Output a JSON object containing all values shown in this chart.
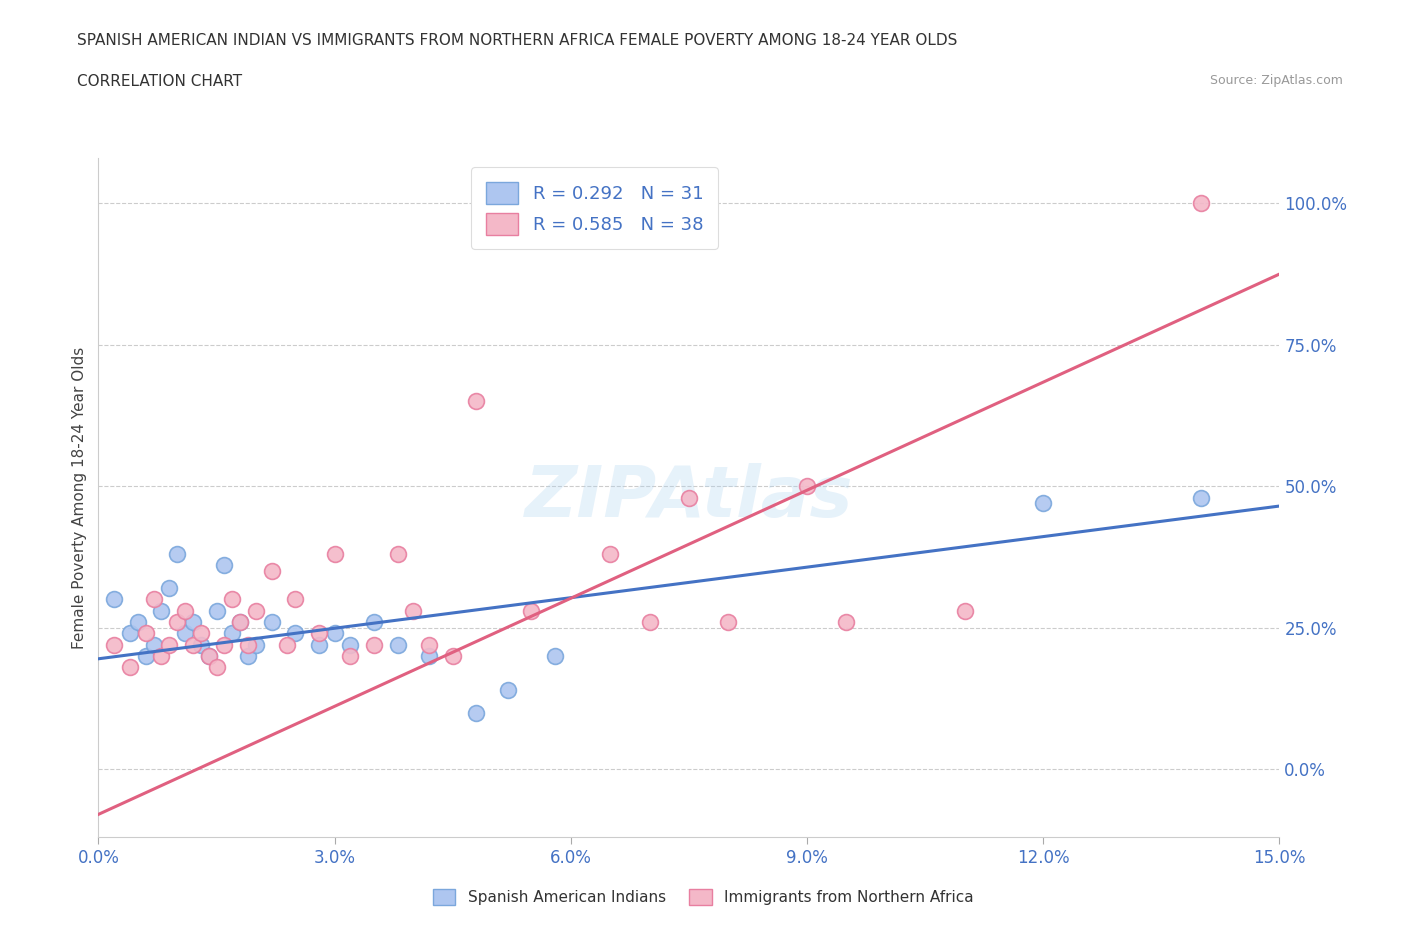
{
  "title_line1": "SPANISH AMERICAN INDIAN VS IMMIGRANTS FROM NORTHERN AFRICA FEMALE POVERTY AMONG 18-24 YEAR OLDS",
  "title_line2": "CORRELATION CHART",
  "source": "Source: ZipAtlas.com",
  "ylabel": "Female Poverty Among 18-24 Year Olds",
  "xlim": [
    0.0,
    0.15
  ],
  "ylim": [
    -0.12,
    1.08
  ],
  "yticks": [
    0.0,
    0.25,
    0.5,
    0.75,
    1.0
  ],
  "ytick_labels": [
    "0.0%",
    "25.0%",
    "50.0%",
    "75.0%",
    "100.0%"
  ],
  "xticks": [
    0.0,
    0.03,
    0.06,
    0.09,
    0.12,
    0.15
  ],
  "xtick_labels": [
    "0.0%",
    "3.0%",
    "6.0%",
    "9.0%",
    "12.0%",
    "15.0%"
  ],
  "watermark": "ZIPAtlas",
  "blue_R": 0.292,
  "blue_N": 31,
  "pink_R": 0.585,
  "pink_N": 38,
  "blue_color": "#aec6f0",
  "blue_edge": "#7ba7dc",
  "pink_color": "#f4b8c8",
  "pink_edge": "#e87fa0",
  "blue_line_color": "#4472c4",
  "pink_line_color": "#e06080",
  "legend_label_blue": "Spanish American Indians",
  "legend_label_pink": "Immigrants from Northern Africa",
  "blue_scatter_x": [
    0.002,
    0.004,
    0.005,
    0.006,
    0.007,
    0.008,
    0.009,
    0.01,
    0.011,
    0.012,
    0.013,
    0.014,
    0.015,
    0.016,
    0.017,
    0.018,
    0.019,
    0.02,
    0.022,
    0.025,
    0.028,
    0.03,
    0.032,
    0.035,
    0.038,
    0.042,
    0.048,
    0.052,
    0.058,
    0.12,
    0.14
  ],
  "blue_scatter_y": [
    0.3,
    0.24,
    0.26,
    0.2,
    0.22,
    0.28,
    0.32,
    0.38,
    0.24,
    0.26,
    0.22,
    0.2,
    0.28,
    0.36,
    0.24,
    0.26,
    0.2,
    0.22,
    0.26,
    0.24,
    0.22,
    0.24,
    0.22,
    0.26,
    0.22,
    0.2,
    0.1,
    0.14,
    0.2,
    0.47,
    0.48
  ],
  "pink_scatter_x": [
    0.002,
    0.004,
    0.006,
    0.007,
    0.008,
    0.009,
    0.01,
    0.011,
    0.012,
    0.013,
    0.014,
    0.015,
    0.016,
    0.017,
    0.018,
    0.019,
    0.02,
    0.022,
    0.024,
    0.025,
    0.028,
    0.03,
    0.032,
    0.035,
    0.038,
    0.04,
    0.042,
    0.045,
    0.048,
    0.055,
    0.065,
    0.07,
    0.075,
    0.08,
    0.09,
    0.095,
    0.11,
    0.14
  ],
  "pink_scatter_y": [
    0.22,
    0.18,
    0.24,
    0.3,
    0.2,
    0.22,
    0.26,
    0.28,
    0.22,
    0.24,
    0.2,
    0.18,
    0.22,
    0.3,
    0.26,
    0.22,
    0.28,
    0.35,
    0.22,
    0.3,
    0.24,
    0.38,
    0.2,
    0.22,
    0.38,
    0.28,
    0.22,
    0.2,
    0.65,
    0.28,
    0.38,
    0.26,
    0.48,
    0.26,
    0.5,
    0.26,
    0.28,
    1.0
  ],
  "blue_line_x": [
    0.0,
    0.15
  ],
  "blue_line_y": [
    0.195,
    0.465
  ],
  "pink_line_x": [
    0.0,
    0.15
  ],
  "pink_line_y": [
    -0.08,
    0.875
  ]
}
